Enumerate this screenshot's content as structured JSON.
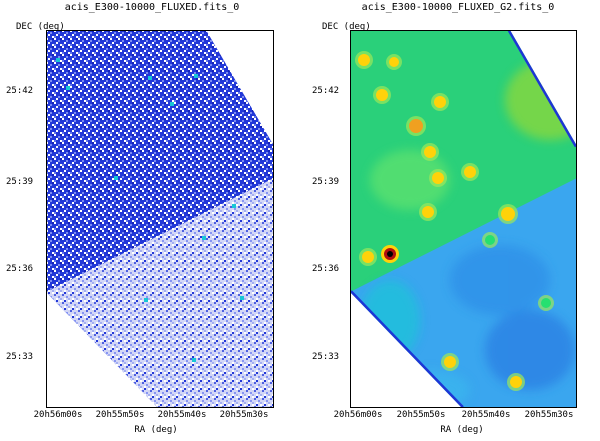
{
  "panels": [
    {
      "title": "acis_E300-10000_FLUXED.fits_0",
      "y_axis_label": "DEC  (deg)",
      "x_axis_label": "RA (deg)",
      "y_ticks": [
        "25:42",
        "25:39",
        "25:36",
        "25:33"
      ],
      "x_ticks": [
        "20h56m00s",
        "20h55m50s",
        "20h55m40s",
        "20h55m30s"
      ],
      "colormap": [
        "#ffffff",
        "#1c2fd8",
        "#19c7d6"
      ]
    },
    {
      "title": "acis_E300-10000_FLUXED_G2.fits_0",
      "y_axis_label": "DEC  (deg)",
      "x_axis_label": "RA (deg)",
      "y_ticks": [
        "25:42",
        "25:39",
        "25:36",
        "25:33"
      ],
      "x_ticks": [
        "20h56m00s",
        "20h55m50s",
        "20h55m40s",
        "20h55m30s"
      ],
      "colormap": [
        "#ffffff",
        "#3a4fe6",
        "#20c4e0",
        "#25e070",
        "#ffd20a",
        "#b01010"
      ]
    }
  ]
}
